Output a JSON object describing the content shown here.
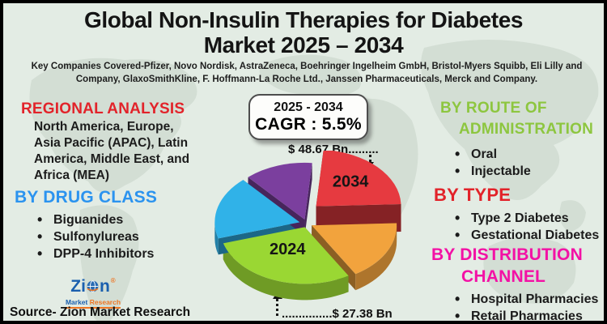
{
  "header": {
    "title_line1": "Global Non-Insulin Therapies for Diabetes",
    "title_line2": "Market 2025 – 2034",
    "subtitle": "Key Companies Covered-Pfizer, Novo Nordisk, AstraZeneca, Boehringer Ingelheim GmbH, Bristol-Myers Squibb, Eli Lilly and Company, GlaxoSmithKline, F. Hoffmann-La Roche Ltd., Janssen Pharmaceuticals, Merck and Company."
  },
  "left": {
    "regional": {
      "heading": "REGIONAL ANALYSIS",
      "text": "North America, Europe, Asia Pacific (APAC), Latin America, Middle East, and Africa (MEA)"
    },
    "drug_class": {
      "heading": "BY DRUG CLASS",
      "items": [
        "Biguanides",
        "Sulfonylureas",
        "DPP-4 Inhibitors"
      ]
    }
  },
  "right": {
    "route": {
      "heading_line1": "BY ROUTE OF",
      "heading_line2": "ADMINISTRATION",
      "items": [
        "Oral",
        "Injectable"
      ]
    },
    "type": {
      "heading": "BY TYPE",
      "items": [
        "Type 2 Diabetes",
        "Gestational Diabetes"
      ]
    },
    "distribution": {
      "heading_line1": "BY DISTRIBUTION",
      "heading_line2": "CHANNEL",
      "items": [
        "Hospital Pharmacies",
        "Retail Pharmacies"
      ]
    }
  },
  "center": {
    "cagr_box": {
      "period": "2025 - 2034",
      "cagr": "CAGR : 5.5%"
    },
    "annotation_top": {
      "label": "$ 48.67 Bn",
      "dots": "........."
    },
    "annotation_bottom": {
      "label": "$ 27.38 Bn",
      "dots": "..............."
    }
  },
  "palette": {
    "background": "#e3ece4",
    "heading_red": "#e2232a",
    "heading_blue": "#2b93ef",
    "heading_green": "#8dc63f",
    "heading_magenta": "#f311a5",
    "border": "#000000"
  },
  "footer": {
    "logo_prefix": "Zi",
    "logo_suffix": "n",
    "logo_reg": "®",
    "logo_sub_market": "Market",
    "logo_sub_research": "Research",
    "source": "Source- Zion Market Research"
  },
  "chart_data": {
    "type": "pie",
    "style": "3d-exploded",
    "title": "Global Non-Insulin Therapies for Diabetes Market size",
    "unit": "USD Billion",
    "period": "2025 - 2034",
    "cagr_percent": 5.5,
    "values_shown": [
      {
        "year": "2024",
        "value_bn": 27.38,
        "label": "$ 27.38 Bn"
      },
      {
        "year": "2034",
        "value_bn": 48.67,
        "label": "$ 48.67 Bn"
      }
    ],
    "legend": "none",
    "start_angle": -85,
    "slices": [
      {
        "label": "2034",
        "share": 0.23,
        "color": "#e63a40",
        "explode": 16,
        "raise": 14,
        "label_dy": -4
      },
      {
        "label": "",
        "share": 0.17,
        "color": "#f2a33d",
        "explode": 7,
        "raise": 0,
        "label_dy": 0
      },
      {
        "label": "2024",
        "share": 0.29,
        "color": "#9ad733",
        "explode": 7,
        "raise": 0,
        "label_dy": -10
      },
      {
        "label": "",
        "share": 0.18,
        "color": "#30b2e8",
        "explode": 9,
        "raise": 0,
        "label_dy": 0
      },
      {
        "label": "",
        "share": 0.13,
        "color": "#7b3f9e",
        "explode": 8,
        "raise": 0,
        "label_dy": 0
      }
    ]
  }
}
